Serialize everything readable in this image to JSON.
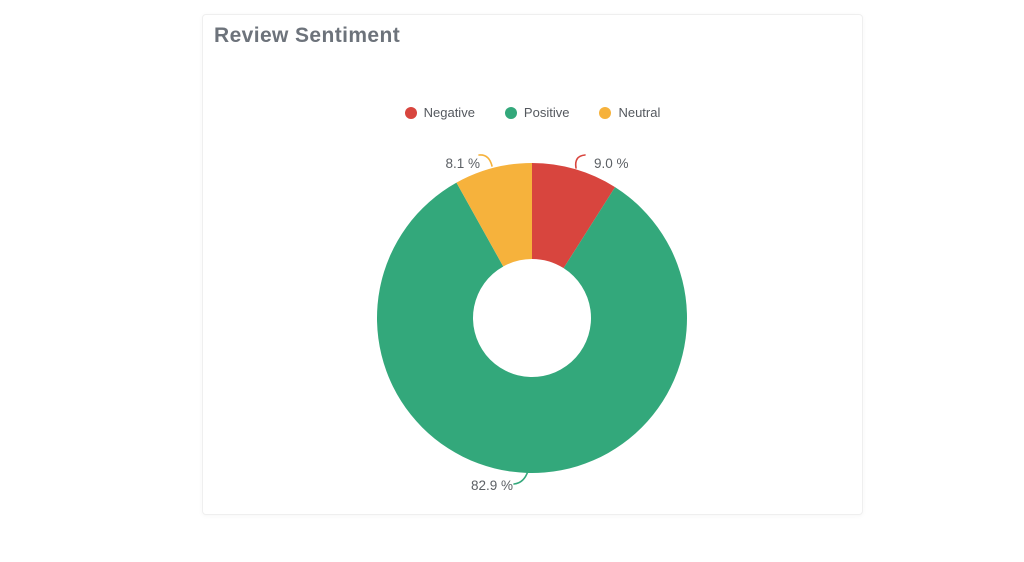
{
  "card": {
    "title": "Review Sentiment"
  },
  "chart_data": {
    "type": "pie",
    "subtype": "donut",
    "title": "Review Sentiment",
    "labels": [
      "Negative",
      "Positive",
      "Neutral"
    ],
    "values": [
      9.0,
      82.9,
      8.1
    ],
    "value_labels": [
      "9.0 %",
      "82.9 %",
      "8.1 %"
    ],
    "unit": "%",
    "colors": [
      "#d8453e",
      "#33a87b",
      "#f6b23c"
    ],
    "legend_position": "top",
    "start_angle_deg": 0,
    "direction": "clockwise",
    "donut_hole_ratio": 0.38
  }
}
